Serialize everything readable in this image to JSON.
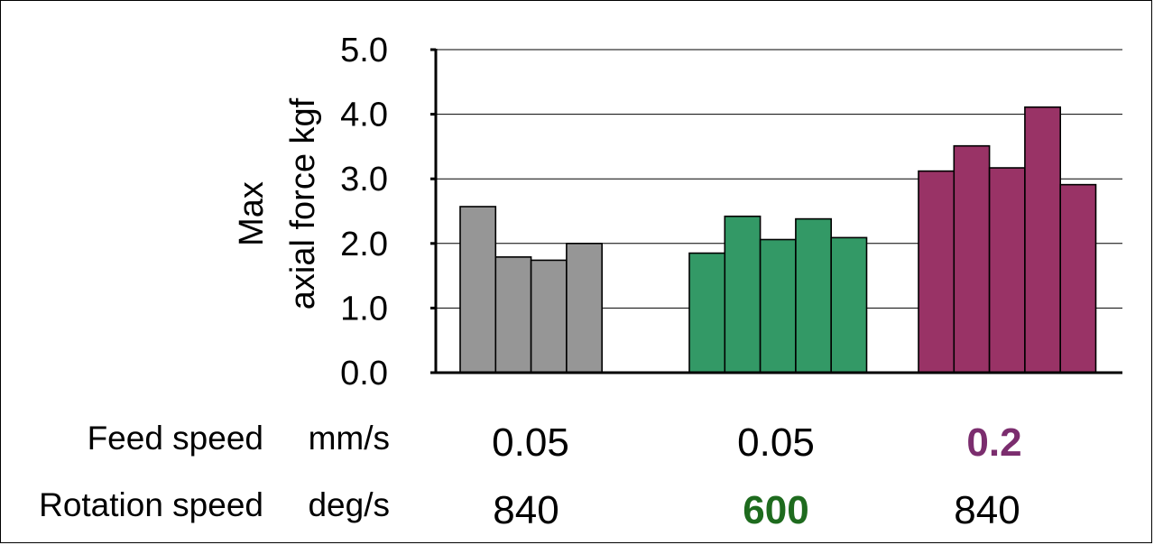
{
  "chart_data": {
    "type": "bar",
    "ylabel_line1": "Max",
    "ylabel_line2": "axial force  kgf",
    "ylim": [
      0,
      5
    ],
    "yticks": [
      "0.0",
      "1.0",
      "2.0",
      "3.0",
      "4.0",
      "5.0"
    ],
    "grid": true,
    "groups": [
      {
        "color": "#969696",
        "values": [
          2.57,
          1.79,
          1.74,
          2.0
        ]
      },
      {
        "color": "#339966",
        "values": [
          1.85,
          2.42,
          2.06,
          2.38,
          2.09
        ]
      },
      {
        "color": "#993366",
        "values": [
          3.12,
          3.51,
          3.17,
          4.11,
          2.91
        ]
      }
    ]
  },
  "conditions": {
    "feed_label": "Feed speed",
    "feed_unit": "mm/s",
    "rotation_label": "Rotation speed",
    "rotation_unit": "deg/s",
    "feed_values": [
      "0.05",
      "0.05",
      "0.2"
    ],
    "rotation_values": [
      "840",
      "600",
      "840"
    ],
    "highlight_feed_color": "#7b2d6e",
    "highlight_rotation_color": "#1e6b1e"
  }
}
